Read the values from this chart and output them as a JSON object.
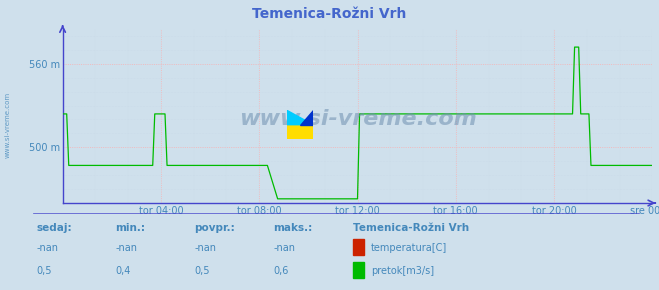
{
  "title": "Temenica-Rožni Vrh",
  "bg_color": "#cfe0ec",
  "plot_bg_color": "#cfe0ec",
  "grid_color": "#ffb0b0",
  "grid_color_dot": "#c8d8e8",
  "line_color_pretok": "#00bb00",
  "line_color_temp": "#cc0000",
  "axis_color": "#4444cc",
  "tick_color": "#4488bb",
  "title_color": "#4466cc",
  "label_color": "#4488bb",
  "legend_title": "Temenica-Rožni Vrh",
  "legend_temp_label": "temperatura[C]",
  "legend_pretok_label": "pretok[m3/s]",
  "watermark": "www.si-vreme.com",
  "xlabels": [
    "tor 04:00",
    "tor 08:00",
    "tor 12:00",
    "tor 16:00",
    "tor 20:00",
    "sre 00:00"
  ],
  "ylim": [
    460,
    585
  ],
  "yticks": [
    500,
    560
  ],
  "ytick_labels": [
    "500 m",
    "560 m"
  ],
  "sedaj_label": "sedaj:",
  "min_label": "min.:",
  "povpr_label": "povpr.:",
  "maks_label": "maks.:",
  "temp_row1": "-nan",
  "temp_row2": "-nan",
  "temp_row3": "-nan",
  "temp_row4": "-nan",
  "pretok_row1": "0,5",
  "pretok_row2": "0,4",
  "pretok_row3": "0,5",
  "pretok_row4": "0,6",
  "n_points": 289
}
